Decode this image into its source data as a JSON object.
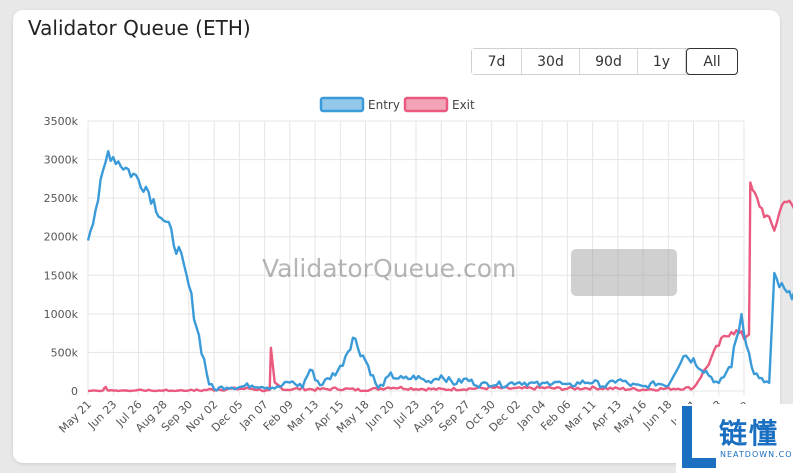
{
  "card": {
    "title": "Validator Queue (ETH)"
  },
  "range_buttons": [
    {
      "label": "7d",
      "active": false
    },
    {
      "label": "30d",
      "active": false
    },
    {
      "label": "90d",
      "active": false
    },
    {
      "label": "1y",
      "active": false
    },
    {
      "label": "All",
      "active": true
    }
  ],
  "watermark": "ValidatorQueue.com",
  "logo": {
    "main": "链懂",
    "sub": "NEATDOWN.COM"
  },
  "colors": {
    "entry": "#3b9bd9",
    "exit": "#ea5a7e",
    "grid": "#e6e6e6"
  },
  "chart_data": {
    "type": "line",
    "title": "Validator Queue (ETH)",
    "xlabel": "",
    "ylabel": "",
    "ylim": [
      0,
      3500
    ],
    "y_ticks": [
      "0",
      "500k",
      "1000k",
      "1500k",
      "2000k",
      "2500k",
      "3000k",
      "3500k"
    ],
    "x_ticks": [
      "May 21",
      "Jun 23",
      "Jul 26",
      "Aug 28",
      "Sep 30",
      "Nov 02",
      "Dec 05",
      "Jan 07",
      "Feb 09",
      "Mar 13",
      "Apr 15",
      "May 18",
      "Jun 20",
      "Jul 23",
      "Aug 25",
      "Sep 27",
      "Oct 30",
      "Dec 02",
      "Jan 04",
      "Feb 06",
      "Mar 11",
      "Apr 13",
      "May 16",
      "Jun 18",
      "Jul 21",
      "Aug 23",
      "Se"
    ],
    "legend": [
      "Entry",
      "Exit"
    ],
    "series": [
      {
        "name": "Entry",
        "color": "#3b9bd9",
        "points": [
          [
            0,
            2000
          ],
          [
            0.4,
            2500
          ],
          [
            0.8,
            3100
          ],
          [
            1.3,
            2950
          ],
          [
            1.8,
            2800
          ],
          [
            2.3,
            2650
          ],
          [
            2.7,
            2400
          ],
          [
            3.2,
            2100
          ],
          [
            3.6,
            1800
          ],
          [
            4.0,
            1350
          ],
          [
            4.4,
            700
          ],
          [
            4.8,
            100
          ],
          [
            5.0,
            20
          ],
          [
            5.5,
            60
          ],
          [
            6.0,
            50
          ],
          [
            6.5,
            80
          ],
          [
            7.0,
            60
          ],
          [
            7.5,
            40
          ],
          [
            8.0,
            120
          ],
          [
            8.5,
            60
          ],
          [
            8.8,
            280
          ],
          [
            9.2,
            80
          ],
          [
            9.5,
            150
          ],
          [
            10.0,
            300
          ],
          [
            10.5,
            700
          ],
          [
            11.0,
            400
          ],
          [
            11.5,
            30
          ],
          [
            12.0,
            200
          ],
          [
            12.5,
            150
          ],
          [
            13.0,
            180
          ],
          [
            13.5,
            120
          ],
          [
            14.0,
            200
          ],
          [
            14.5,
            100
          ],
          [
            15.0,
            150
          ],
          [
            15.5,
            80
          ],
          [
            16.0,
            100
          ],
          [
            16.5,
            80
          ],
          [
            17.0,
            120
          ],
          [
            17.5,
            100
          ],
          [
            18.0,
            80
          ],
          [
            18.5,
            130
          ],
          [
            19.0,
            60
          ],
          [
            19.5,
            110
          ],
          [
            20.0,
            120
          ],
          [
            20.5,
            60
          ],
          [
            21.0,
            150
          ],
          [
            21.5,
            80
          ],
          [
            22.0,
            50
          ],
          [
            22.5,
            100
          ],
          [
            23.0,
            80
          ],
          [
            23.6,
            480
          ],
          [
            24.0,
            400
          ],
          [
            24.5,
            250
          ],
          [
            25.0,
            80
          ],
          [
            25.5,
            350
          ],
          [
            25.9,
            1000
          ],
          [
            26.3,
            300
          ],
          [
            26.6,
            150
          ],
          [
            27.0,
            100
          ],
          [
            27.2,
            1450
          ],
          [
            27.8,
            1200
          ],
          [
            28.2,
            1550
          ],
          [
            28.8,
            1000
          ],
          [
            29.2,
            700
          ],
          [
            29.6,
            520
          ]
        ]
      },
      {
        "name": "Exit",
        "color": "#ea5a7e",
        "points": [
          [
            0,
            0
          ],
          [
            0.6,
            0
          ],
          [
            0.7,
            50
          ],
          [
            0.8,
            0
          ],
          [
            2,
            0
          ],
          [
            4,
            0
          ],
          [
            5,
            20
          ],
          [
            6,
            30
          ],
          [
            6.5,
            30
          ],
          [
            7.2,
            0
          ],
          [
            7.25,
            520
          ],
          [
            7.4,
            100
          ],
          [
            7.8,
            20
          ],
          [
            8.5,
            30
          ],
          [
            9,
            20
          ],
          [
            10,
            30
          ],
          [
            11,
            10
          ],
          [
            12,
            50
          ],
          [
            13,
            30
          ],
          [
            14,
            20
          ],
          [
            15,
            30
          ],
          [
            16,
            40
          ],
          [
            17,
            30
          ],
          [
            18,
            40
          ],
          [
            19,
            30
          ],
          [
            20,
            40
          ],
          [
            21,
            30
          ],
          [
            22,
            20
          ],
          [
            23,
            30
          ],
          [
            24,
            40
          ],
          [
            24.5,
            300
          ],
          [
            25,
            600
          ],
          [
            25.5,
            800
          ],
          [
            26.0,
            700
          ],
          [
            26.2,
            750
          ],
          [
            26.25,
            2650
          ],
          [
            26.8,
            2300
          ],
          [
            27.2,
            2100
          ],
          [
            27.6,
            2500
          ],
          [
            28.0,
            2350
          ],
          [
            28.4,
            1900
          ],
          [
            28.8,
            1500
          ],
          [
            29.2,
            1300
          ],
          [
            29.6,
            1000
          ]
        ]
      }
    ]
  }
}
